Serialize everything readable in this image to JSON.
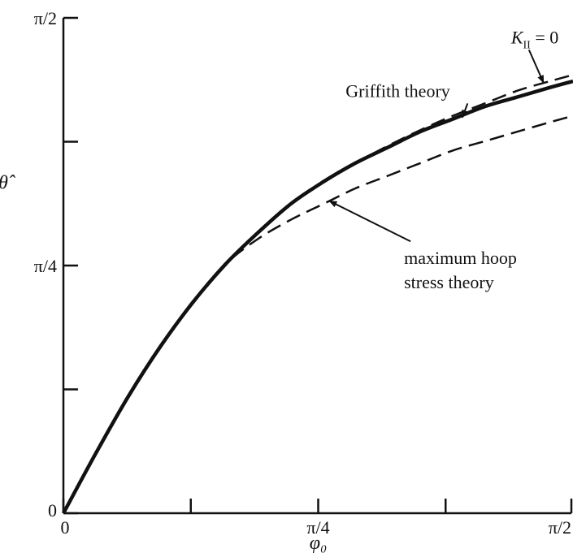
{
  "chart_data": {
    "type": "line",
    "xlabel": "φ₀",
    "ylabel": "θ̂",
    "xlim": [
      0,
      1.5708
    ],
    "ylim": [
      0,
      1.5708
    ],
    "x_ticks": [
      {
        "value": 0,
        "label": "0"
      },
      {
        "value": 0.3927,
        "label": ""
      },
      {
        "value": 0.7854,
        "label": "π/4"
      },
      {
        "value": 1.1781,
        "label": ""
      },
      {
        "value": 1.5708,
        "label": "π/2"
      }
    ],
    "y_ticks": [
      {
        "value": 0,
        "label": "0"
      },
      {
        "value": 0.3927,
        "label": ""
      },
      {
        "value": 0.7854,
        "label": "π/4"
      },
      {
        "value": 1.1781,
        "label": ""
      },
      {
        "value": 1.5708,
        "label": "π/2"
      }
    ],
    "grid": false,
    "legend": "none",
    "series": [
      {
        "name": "Griffith theory",
        "style": "solid",
        "color": "#111111",
        "x": [
          0,
          0.1,
          0.2,
          0.3,
          0.4,
          0.5,
          0.6,
          0.7,
          0.8,
          0.9,
          1.0,
          1.1,
          1.2,
          1.3,
          1.4,
          1.5,
          1.5708
        ],
        "y": [
          0,
          0.19,
          0.37,
          0.53,
          0.67,
          0.79,
          0.89,
          0.98,
          1.05,
          1.11,
          1.16,
          1.21,
          1.25,
          1.29,
          1.32,
          1.35,
          1.37
        ]
      },
      {
        "name": "K_II = 0",
        "style": "dashed",
        "color": "#111111",
        "x": [
          0,
          0.1,
          0.2,
          0.3,
          0.4,
          0.5,
          0.6,
          0.7,
          0.8,
          0.9,
          1.0,
          1.1,
          1.2,
          1.3,
          1.4,
          1.5,
          1.5708
        ],
        "y": [
          0,
          0.19,
          0.37,
          0.53,
          0.67,
          0.79,
          0.89,
          0.98,
          1.05,
          1.11,
          1.165,
          1.215,
          1.26,
          1.3,
          1.34,
          1.37,
          1.39
        ]
      },
      {
        "name": "maximum hoop stress theory",
        "style": "dashed",
        "color": "#111111",
        "x": [
          0,
          0.1,
          0.2,
          0.3,
          0.4,
          0.5,
          0.6,
          0.7,
          0.8,
          0.9,
          1.0,
          1.1,
          1.2,
          1.3,
          1.4,
          1.5,
          1.5708
        ],
        "y": [
          0,
          0.19,
          0.37,
          0.53,
          0.67,
          0.79,
          0.87,
          0.93,
          0.98,
          1.03,
          1.07,
          1.11,
          1.15,
          1.18,
          1.21,
          1.24,
          1.26
        ]
      }
    ],
    "annotations": [
      {
        "id": "k2",
        "prefix": "K",
        "subscript": "II",
        "suffix": " = 0",
        "points_to": {
          "x": 1.48,
          "y": 1.365
        },
        "text_at": {
          "x": 1.38,
          "y": 1.49
        }
      },
      {
        "id": "griffith",
        "text": "Griffith theory",
        "points_to": {
          "x": 1.23,
          "y": 1.255
        },
        "text_at": {
          "x": 0.87,
          "y": 1.32
        }
      },
      {
        "id": "hoop",
        "lines": [
          "maximum hoop",
          "stress theory"
        ],
        "points_to": {
          "x": 0.82,
          "y": 0.99
        },
        "text_at": {
          "x": 1.05,
          "y": 0.79
        }
      }
    ]
  }
}
